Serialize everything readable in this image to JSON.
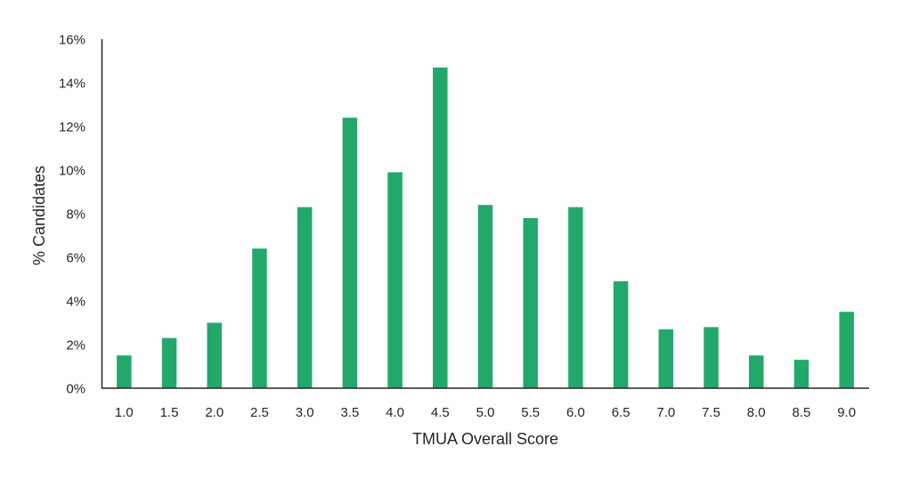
{
  "chart_data": {
    "type": "bar",
    "title": "",
    "xlabel": "TMUA Overall Score",
    "ylabel": "% Candidates",
    "categories": [
      "1.0",
      "1.5",
      "2.0",
      "2.5",
      "3.0",
      "3.5",
      "4.0",
      "4.5",
      "5.0",
      "5.5",
      "6.0",
      "6.5",
      "7.0",
      "7.5",
      "8.0",
      "8.5",
      "9.0"
    ],
    "values": [
      1.5,
      2.3,
      3.0,
      6.4,
      8.3,
      12.4,
      9.9,
      14.7,
      8.4,
      7.8,
      8.3,
      4.9,
      2.7,
      2.8,
      1.5,
      1.3,
      3.5
    ],
    "value_unit": "%",
    "ylim": [
      0,
      16
    ],
    "yticks": [
      "0%",
      "2%",
      "4%",
      "6%",
      "8%",
      "10%",
      "12%",
      "14%",
      "16%"
    ],
    "ytick_values": [
      0,
      2,
      4,
      6,
      8,
      10,
      12,
      14,
      16
    ],
    "grid": false,
    "legend": null,
    "bar_color": "#23a86b",
    "axis_color": "#262626"
  }
}
